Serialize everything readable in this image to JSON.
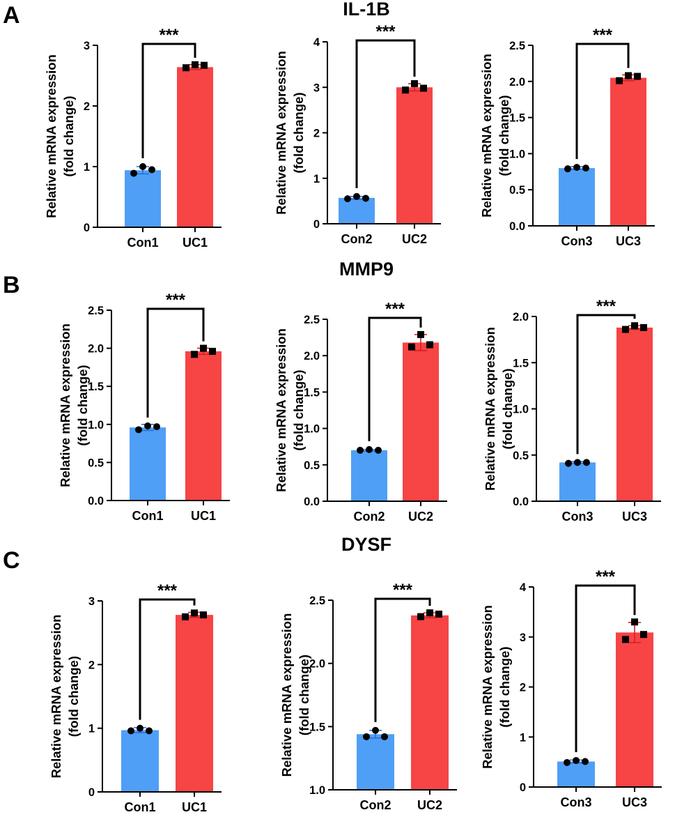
{
  "figure": {
    "panels": [
      {
        "letter": "A",
        "gene": "IL-1B"
      },
      {
        "letter": "B",
        "gene": "MMP9"
      },
      {
        "letter": "C",
        "gene": "DYSF"
      }
    ],
    "ylabel_line1": "Relative mRNA expression",
    "ylabel_line2": "(fold change)",
    "colors": {
      "control": "#4f9ff6",
      "uc": "#f74445",
      "error_control": "#2f6fd1",
      "error_uc": "#d42020"
    }
  },
  "chart_data": [
    {
      "type": "bar",
      "panel": "A",
      "gene": "IL-1B",
      "categories": [
        "Con1",
        "UC1"
      ],
      "values": [
        0.94,
        2.64
      ],
      "errors": [
        0.06,
        0.04
      ],
      "points": [
        [
          0.89,
          1.0,
          0.95
        ],
        [
          2.63,
          2.68,
          2.67
        ]
      ],
      "ylim": [
        0,
        3
      ],
      "yticks": [
        0,
        1,
        2,
        3
      ],
      "tick_labels": [
        "0",
        "1",
        "2",
        "3"
      ],
      "ylabel": "Relative mRNA expression (fold change)",
      "significance": "***"
    },
    {
      "type": "bar",
      "panel": "A",
      "gene": "IL-1B",
      "categories": [
        "Con2",
        "UC2"
      ],
      "values": [
        0.57,
        3.0
      ],
      "errors": [
        0.03,
        0.08
      ],
      "points": [
        [
          0.55,
          0.6,
          0.56
        ],
        [
          2.94,
          3.08,
          2.98
        ]
      ],
      "ylim": [
        0,
        4
      ],
      "yticks": [
        0,
        1,
        2,
        3,
        4
      ],
      "tick_labels": [
        "0",
        "1",
        "2",
        "3",
        "4"
      ],
      "ylabel": "Relative mRNA expression (fold change)",
      "significance": "***"
    },
    {
      "type": "bar",
      "panel": "A",
      "gene": "IL-1B",
      "categories": [
        "Con3",
        "UC3"
      ],
      "values": [
        0.8,
        2.05
      ],
      "errors": [
        0.02,
        0.04
      ],
      "points": [
        [
          0.79,
          0.81,
          0.8
        ],
        [
          2.01,
          2.08,
          2.07
        ]
      ],
      "ylim": [
        0,
        2.5
      ],
      "yticks": [
        0,
        0.5,
        1,
        1.5,
        2,
        2.5
      ],
      "tick_labels": [
        "0.0",
        "0.5",
        "1.0",
        "1.5",
        "2.0",
        "2.5"
      ],
      "ylabel": "Relative mRNA expression (fold change)",
      "significance": "***"
    },
    {
      "type": "bar",
      "panel": "B",
      "gene": "MMP9",
      "categories": [
        "Con1",
        "UC1"
      ],
      "values": [
        0.96,
        1.96
      ],
      "errors": [
        0.04,
        0.04
      ],
      "points": [
        [
          0.93,
          0.98,
          0.97
        ],
        [
          1.92,
          2.0,
          1.96
        ]
      ],
      "ylim": [
        0,
        2.5
      ],
      "yticks": [
        0,
        0.5,
        1,
        1.5,
        2,
        2.5
      ],
      "tick_labels": [
        "0.0",
        "0.5",
        "1.0",
        "1.5",
        "2.0",
        "2.5"
      ],
      "ylabel": "Relative mRNA expression (fold change)",
      "significance": "***"
    },
    {
      "type": "bar",
      "panel": "B",
      "gene": "MMP9",
      "categories": [
        "Con2",
        "UC2"
      ],
      "values": [
        0.7,
        2.18
      ],
      "errors": [
        0.01,
        0.11
      ],
      "points": [
        [
          0.7,
          0.71,
          0.7
        ],
        [
          2.12,
          2.29,
          2.15
        ]
      ],
      "ylim": [
        0,
        2.5
      ],
      "yticks": [
        0,
        0.5,
        1,
        1.5,
        2,
        2.5
      ],
      "tick_labels": [
        "0.0",
        "0.5",
        "1.0",
        "1.5",
        "2.0",
        "2.5"
      ],
      "ylabel": "Relative mRNA expression (fold change)",
      "significance": "***"
    },
    {
      "type": "bar",
      "panel": "B",
      "gene": "MMP9",
      "categories": [
        "Con3",
        "UC3"
      ],
      "values": [
        0.42,
        1.88
      ],
      "errors": [
        0.01,
        0.02
      ],
      "points": [
        [
          0.41,
          0.42,
          0.42
        ],
        [
          1.86,
          1.9,
          1.88
        ]
      ],
      "ylim": [
        0,
        2.0
      ],
      "yticks": [
        0,
        0.5,
        1,
        1.5,
        2
      ],
      "tick_labels": [
        "0.0",
        "0.5",
        "1.0",
        "1.5",
        "2.0"
      ],
      "ylabel": "Relative mRNA expression (fold change)",
      "significance": "***"
    },
    {
      "type": "bar",
      "panel": "C",
      "gene": "DYSF",
      "categories": [
        "Con1",
        "UC1"
      ],
      "values": [
        0.97,
        2.78
      ],
      "errors": [
        0.04,
        0.04
      ],
      "points": [
        [
          0.96,
          1.0,
          0.96
        ],
        [
          2.75,
          2.81,
          2.78
        ]
      ],
      "ylim": [
        0,
        3
      ],
      "yticks": [
        0,
        1,
        2,
        3
      ],
      "tick_labels": [
        "0",
        "1",
        "2",
        "3"
      ],
      "ylabel": "Relative mRNA expression (fold change)",
      "significance": "***"
    },
    {
      "type": "bar",
      "panel": "C",
      "gene": "DYSF",
      "categories": [
        "Con2",
        "UC2"
      ],
      "values": [
        1.44,
        2.38
      ],
      "errors": [
        0.03,
        0.02
      ],
      "points": [
        [
          1.42,
          1.47,
          1.42
        ],
        [
          2.37,
          2.4,
          2.39
        ]
      ],
      "ylim": [
        1.0,
        2.5
      ],
      "yticks": [
        1.0,
        1.5,
        2.0,
        2.5
      ],
      "tick_labels": [
        "1.0",
        "1.5",
        "2.0",
        "2.5"
      ],
      "ylabel": "Relative mRNA expression (fold change)",
      "significance": "***"
    },
    {
      "type": "bar",
      "panel": "C",
      "gene": "DYSF",
      "categories": [
        "Con3",
        "UC3"
      ],
      "values": [
        0.51,
        3.09
      ],
      "errors": [
        0.03,
        0.2
      ],
      "points": [
        [
          0.49,
          0.53,
          0.51
        ],
        [
          2.95,
          3.3,
          3.05
        ]
      ],
      "ylim": [
        0,
        4
      ],
      "yticks": [
        0,
        1,
        2,
        3,
        4
      ],
      "tick_labels": [
        "0",
        "1",
        "2",
        "3",
        "4"
      ],
      "ylabel": "Relative mRNA expression (fold change)",
      "significance": "***"
    }
  ]
}
